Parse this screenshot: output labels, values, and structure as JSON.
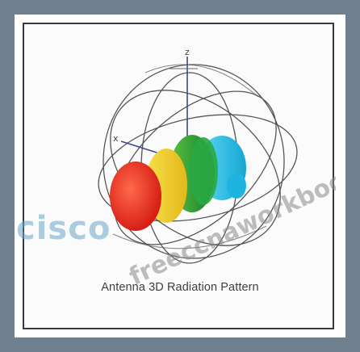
{
  "figure": {
    "caption": "Antenna 3D Radiation Pattern",
    "axes": {
      "z_label": "z",
      "x_label": "x"
    },
    "colors": {
      "frame": "#6f7f8e",
      "lobe_red": "#e8231e",
      "lobe_yellow": "#f2d21f",
      "lobe_green": "#1f9a3b",
      "lobe_cyan": "#27c3e8",
      "wire": "#444444"
    }
  },
  "watermark": {
    "site_text": "freeccnaworkbook.net",
    "brand_text": "cisco"
  }
}
